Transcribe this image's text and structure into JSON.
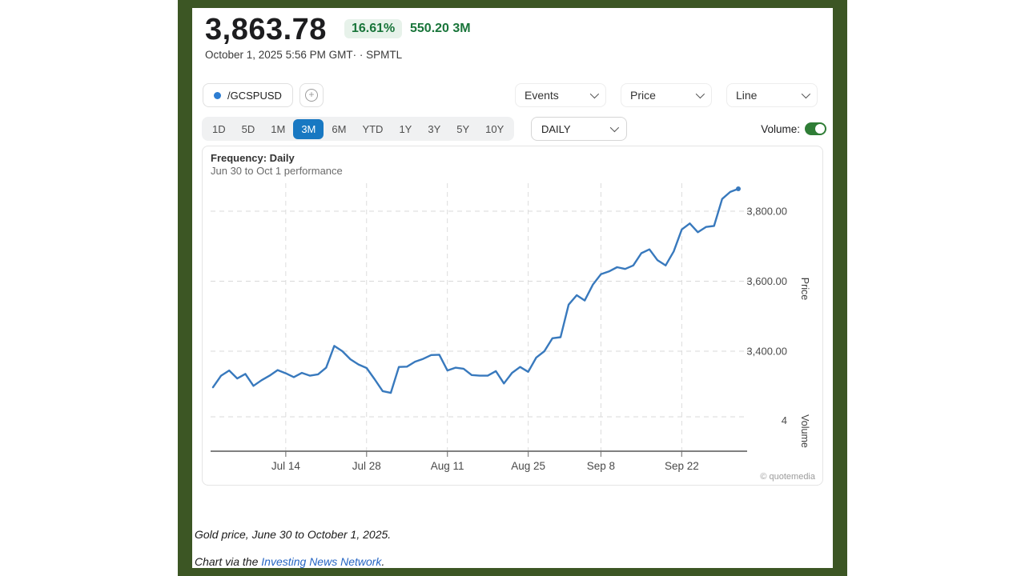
{
  "header": {
    "price": "3,863.78",
    "change_percent": "16.61%",
    "volume_stat": "550.20 3M",
    "timestamp": "October 1, 2025 5:56 PM GMT· · SPMTL"
  },
  "toolbar": {
    "ticker": "/GCSPUSD",
    "add_symbol_label": "+",
    "dropdowns": [
      {
        "label": "Events"
      },
      {
        "label": "Price"
      },
      {
        "label": "Line"
      }
    ]
  },
  "range_tabs": {
    "items": [
      "1D",
      "5D",
      "1M",
      "3M",
      "6M",
      "YTD",
      "1Y",
      "3Y",
      "5Y",
      "10Y"
    ],
    "active": "3M"
  },
  "frequency_select": {
    "value": "DAILY"
  },
  "volume_toggle": {
    "label": "Volume:",
    "state": "on"
  },
  "chart": {
    "title": "Frequency: Daily",
    "subtitle": "Jun 30 to Oct 1 performance",
    "attribution": "© quotemedia",
    "price_axis_label": "Price",
    "volume_axis_label": "Volume",
    "volume_tick_label": "4"
  },
  "chart_data": {
    "type": "line",
    "title": "Gold price Jun 30 to Oct 1 performance",
    "x": [
      "Jun 30",
      "Jul 1",
      "Jul 2",
      "Jul 3",
      "Jul 7",
      "Jul 8",
      "Jul 9",
      "Jul 10",
      "Jul 11",
      "Jul 14",
      "Jul 15",
      "Jul 16",
      "Jul 17",
      "Jul 18",
      "Jul 21",
      "Jul 22",
      "Jul 23",
      "Jul 24",
      "Jul 25",
      "Jul 28",
      "Jul 29",
      "Jul 30",
      "Jul 31",
      "Aug 1",
      "Aug 4",
      "Aug 5",
      "Aug 6",
      "Aug 7",
      "Aug 8",
      "Aug 11",
      "Aug 12",
      "Aug 13",
      "Aug 14",
      "Aug 15",
      "Aug 18",
      "Aug 19",
      "Aug 20",
      "Aug 21",
      "Aug 22",
      "Aug 25",
      "Aug 26",
      "Aug 27",
      "Aug 28",
      "Aug 29",
      "Sep 2",
      "Sep 3",
      "Sep 4",
      "Sep 5",
      "Sep 8",
      "Sep 9",
      "Sep 10",
      "Sep 11",
      "Sep 12",
      "Sep 15",
      "Sep 16",
      "Sep 17",
      "Sep 18",
      "Sep 19",
      "Sep 22",
      "Sep 23",
      "Sep 24",
      "Sep 25",
      "Sep 26",
      "Sep 29",
      "Sep 30",
      "Oct 1"
    ],
    "prices": [
      3297,
      3330,
      3345,
      3322,
      3335,
      3301,
      3317,
      3330,
      3346,
      3337,
      3326,
      3338,
      3330,
      3334,
      3353,
      3415,
      3400,
      3377,
      3362,
      3352,
      3320,
      3286,
      3281,
      3355,
      3356,
      3370,
      3378,
      3389,
      3390,
      3345,
      3353,
      3350,
      3332,
      3330,
      3330,
      3343,
      3308,
      3338,
      3355,
      3341,
      3382,
      3400,
      3437,
      3440,
      3533,
      3560,
      3545,
      3590,
      3620,
      3628,
      3640,
      3635,
      3645,
      3680,
      3691,
      3660,
      3645,
      3685,
      3748,
      3765,
      3740,
      3755,
      3758,
      3835,
      3855,
      3864
    ],
    "x_tick_labels": [
      "Jul 14",
      "Jul 28",
      "Aug 11",
      "Aug 25",
      "Sep 8",
      "Sep 22"
    ],
    "y_ticks": [
      {
        "value": 3800,
        "label": "3,800.00"
      },
      {
        "value": 3600,
        "label": "3,600.00"
      },
      {
        "value": 3400,
        "label": "3,400.00"
      }
    ],
    "ylabel": "Price",
    "y2label": "Volume",
    "y2_tick": "4",
    "ylim": [
      3250,
      3900
    ],
    "grid": "dashed",
    "line_color": "#3879bd"
  },
  "caption": {
    "line1": "Gold price, June 30 to October 1, 2025.",
    "line2_prefix": "Chart via the ",
    "line2_link": "Investing News Network",
    "line2_suffix": "."
  },
  "colors": {
    "frame_green": "#3c5624",
    "accent_blue": "#1878c2",
    "badge_green_text": "#19753a",
    "badge_green_bg": "#e7f2ea",
    "line_blue": "#3879bd",
    "link_blue": "#2766c4",
    "toggle_green": "#2f7d36"
  }
}
